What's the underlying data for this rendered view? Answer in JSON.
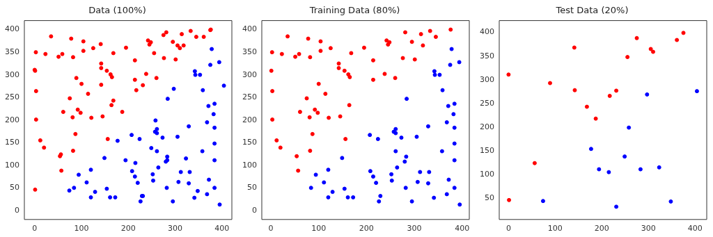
{
  "chart_data": [
    {
      "type": "scatter",
      "title": "Data (100%)",
      "marker": "circle",
      "xlim": [
        -22,
        421
      ],
      "ylim": [
        -20,
        420
      ],
      "xticks": [
        0,
        100,
        200,
        300,
        400
      ],
      "yticks": [
        0,
        50,
        100,
        150,
        200,
        250,
        300,
        350,
        400
      ],
      "series": [
        {
          "color": "#ff0000",
          "x": [
            2.5,
            1,
            3,
            3,
            12,
            20,
            35,
            23,
            51,
            59,
            54,
            57,
            61,
            75,
            78,
            82,
            81,
            82,
            87,
            92,
            98,
            100,
            104,
            104,
            114,
            121,
            125,
            142,
            142,
            145,
            154,
            156,
            162,
            165,
            164,
            168,
            195,
            214,
            214,
            238,
            242,
            248,
            245,
            260,
            276,
            281,
            295,
            301,
            314,
            318,
            333,
            345,
            376,
            0,
            1,
            56,
            89,
            141,
            142,
            168,
            187,
            217,
            231,
            255,
            275,
            305,
            310,
            361,
            375
          ],
          "values": [
            350,
            309,
            264,
            201,
            155,
            139,
            385,
            346,
            340,
            346,
            120,
            88,
            218,
            248,
            380,
            339,
            206,
            132,
            169,
            223,
            216,
            280,
            374,
            353,
            258,
            205,
            359,
            325,
            315,
            208,
            309,
            158,
            301,
            295,
            233,
            348,
            360,
            332,
            289,
            302,
            376,
            372,
            367,
            293,
            337,
            394,
            373,
            334,
            390,
            365,
            397,
            384,
            400,
            311,
            46,
            124,
            293,
            368,
            278,
            243,
            218,
            266,
            277,
            348,
            388,
            365,
            359,
            384,
            399
          ]
        },
        {
          "color": "#0000ff",
          "x": [
            84,
            94,
            111,
            120,
            120,
            129,
            149,
            154,
            161,
            172,
            207,
            224,
            226,
            229,
            220,
            214,
            208,
            252,
            253,
            257,
            261,
            261,
            273,
            261,
            264,
            280,
            283,
            282,
            284,
            295,
            305,
            307,
            312,
            329,
            329,
            331,
            341,
            342,
            343,
            353,
            358,
            359,
            368,
            368,
            371,
            372,
            375,
            378,
            382,
            384,
            384,
            384,
            384,
            384,
            394,
            395,
            74,
            177,
            194,
            215,
            231,
            249,
            258,
            283,
            297,
            323,
            348,
            404
          ],
          "values": [
            50,
            79,
            62,
            90,
            29,
            41,
            116,
            48,
            29,
            29,
            167,
            158,
            20,
            32,
            61,
            75,
            87,
            80,
            66,
            174,
            180,
            171,
            161,
            131,
            95,
            108,
            119,
            50,
            247,
            20,
            163,
            63,
            85,
            186,
            60,
            85,
            28,
            308,
            300,
            300,
            131,
            266,
            36,
            195,
            231,
            68,
            322,
            357,
            213,
            236,
            183,
            148,
            111,
            50,
            328,
            13,
            44,
            154,
            111,
            105,
            32,
            138,
            199,
            111,
            269,
            115,
            43,
            276
          ]
        }
      ]
    },
    {
      "type": "scatter",
      "title": "Training Data (80%)",
      "marker": "circle",
      "xlim": [
        -19,
        415
      ],
      "ylim": [
        -20,
        420
      ],
      "xticks": [
        0,
        100,
        200,
        300,
        400
      ],
      "yticks": [
        0,
        50,
        100,
        150,
        200,
        250,
        300,
        350,
        400
      ],
      "series": [
        {
          "color": "#ff0000",
          "x": [
            2.5,
            1,
            3,
            3,
            12,
            20,
            35,
            23,
            51,
            59,
            54,
            57,
            61,
            75,
            78,
            82,
            81,
            82,
            87,
            92,
            98,
            100,
            104,
            104,
            114,
            121,
            125,
            142,
            142,
            145,
            154,
            156,
            162,
            165,
            164,
            168,
            195,
            214,
            214,
            238,
            242,
            248,
            245,
            260,
            276,
            281,
            295,
            301,
            314,
            318,
            333,
            345,
            376
          ],
          "values": [
            350,
            309,
            264,
            201,
            155,
            139,
            385,
            346,
            340,
            346,
            120,
            88,
            218,
            248,
            380,
            339,
            206,
            132,
            169,
            223,
            216,
            280,
            374,
            353,
            258,
            205,
            359,
            325,
            315,
            208,
            309,
            158,
            301,
            295,
            233,
            348,
            360,
            332,
            289,
            302,
            376,
            372,
            367,
            293,
            337,
            394,
            373,
            334,
            390,
            365,
            397,
            384,
            400
          ]
        },
        {
          "color": "#0000ff",
          "x": [
            84,
            94,
            111,
            120,
            120,
            129,
            149,
            154,
            161,
            172,
            207,
            224,
            226,
            229,
            220,
            214,
            208,
            252,
            253,
            257,
            261,
            261,
            273,
            261,
            264,
            280,
            283,
            282,
            284,
            295,
            305,
            307,
            312,
            329,
            329,
            331,
            341,
            342,
            343,
            353,
            358,
            359,
            368,
            368,
            371,
            372,
            375,
            378,
            382,
            384,
            384,
            384,
            384,
            384,
            394,
            395
          ],
          "values": [
            50,
            79,
            62,
            90,
            29,
            41,
            116,
            48,
            29,
            29,
            167,
            158,
            20,
            32,
            61,
            75,
            87,
            80,
            66,
            174,
            180,
            171,
            161,
            131,
            95,
            108,
            119,
            50,
            247,
            20,
            163,
            63,
            85,
            186,
            60,
            85,
            28,
            308,
            300,
            300,
            131,
            266,
            36,
            195,
            231,
            68,
            322,
            357,
            213,
            236,
            183,
            148,
            111,
            50,
            328,
            13
          ]
        }
      ]
    },
    {
      "type": "scatter",
      "title": "Test Data (20%)",
      "marker": "circle",
      "xlim": [
        -20,
        425
      ],
      "ylim": [
        5,
        425
      ],
      "xticks": [
        0,
        100,
        200,
        300,
        400
      ],
      "yticks": [
        50,
        100,
        150,
        200,
        250,
        300,
        350,
        400
      ],
      "series": [
        {
          "color": "#ff0000",
          "x": [
            0,
            1,
            56,
            89,
            141,
            142,
            168,
            187,
            217,
            231,
            255,
            275,
            305,
            310,
            361,
            375
          ],
          "values": [
            311,
            46,
            124,
            293,
            368,
            278,
            243,
            218,
            266,
            277,
            348,
            388,
            365,
            359,
            384,
            399
          ]
        },
        {
          "color": "#0000ff",
          "x": [
            74,
            177,
            194,
            215,
            231,
            249,
            258,
            283,
            297,
            323,
            348,
            404
          ],
          "values": [
            44,
            154,
            111,
            105,
            32,
            138,
            199,
            111,
            269,
            115,
            43,
            276
          ]
        }
      ]
    }
  ]
}
